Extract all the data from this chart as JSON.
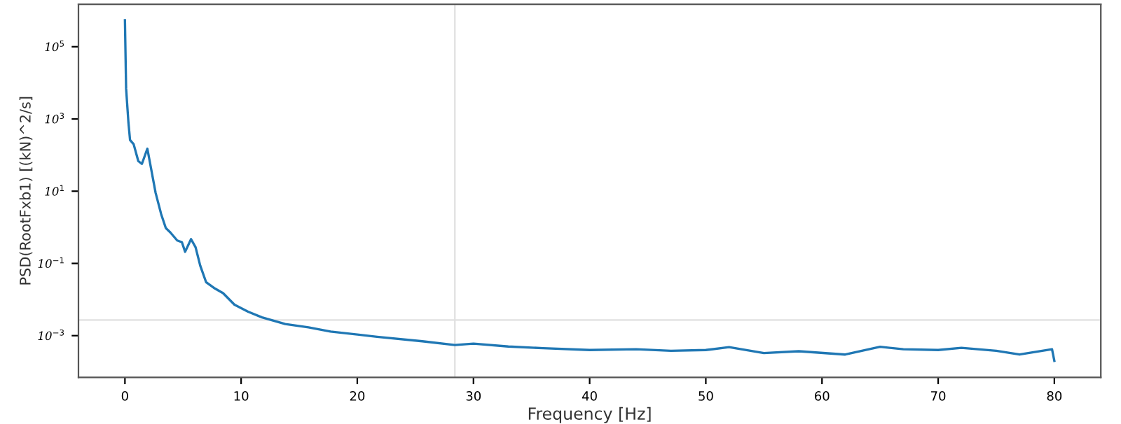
{
  "chart_data": {
    "type": "line",
    "xlabel": "Frequency [Hz]",
    "ylabel": "PSD(RootFxb1) [(kN)^2/s]",
    "log": "y",
    "xlim": [
      -4,
      84
    ],
    "xticks": [
      0,
      10,
      20,
      30,
      40,
      50,
      60,
      70,
      80
    ],
    "ylim": [
      7e-05,
      1500000.0
    ],
    "yticks": [
      {
        "value": 100000,
        "label": "10$^{5}$"
      },
      {
        "value": 1000,
        "label": "10$^{3}$"
      },
      {
        "value": 10,
        "label": "10$^{1}$"
      },
      {
        "value": 0.1,
        "label": "10$^{−1}$"
      },
      {
        "value": 0.001,
        "label": "10$^{−3}$"
      }
    ],
    "grid": false,
    "legend": false,
    "ref_lines": [
      {
        "axis": "x",
        "value": 28.4,
        "color": "#e0e0e0"
      },
      {
        "axis": "y",
        "value": 0.0027,
        "color": "#e0e0e0"
      }
    ],
    "series": [
      {
        "color": "#1f77b4",
        "x": [
          0,
          0.1,
          0.3,
          0.44,
          0.75,
          1.15,
          1.46,
          1.93,
          2.13,
          2.64,
          3.12,
          3.52,
          3.91,
          4.5,
          4.9,
          5.18,
          5.69,
          6.08,
          6.48,
          6.99,
          7.66,
          8.45,
          9.43,
          10.6,
          11.8,
          13.8,
          15.8,
          17.7,
          21.7,
          25.6,
          28.4,
          30,
          33,
          36,
          40,
          44,
          47,
          50,
          52,
          55,
          58,
          62,
          65,
          67,
          70,
          72,
          75,
          77,
          79.8,
          80
        ],
        "values": [
          540000,
          7000,
          800,
          260,
          200,
          68,
          57,
          150,
          68,
          9,
          2.3,
          0.95,
          0.72,
          0.43,
          0.39,
          0.21,
          0.47,
          0.28,
          0.087,
          0.03,
          0.021,
          0.015,
          0.0072,
          0.0046,
          0.0032,
          0.0021,
          0.0017,
          0.0013,
          0.00093,
          0.0007,
          0.00055,
          0.0006,
          0.0005,
          0.00045,
          0.0004,
          0.00042,
          0.00038,
          0.0004,
          0.00048,
          0.00033,
          0.00037,
          0.0003,
          0.00049,
          0.00042,
          0.0004,
          0.00046,
          0.00038,
          0.0003,
          0.00042,
          0.0002
        ]
      }
    ]
  }
}
